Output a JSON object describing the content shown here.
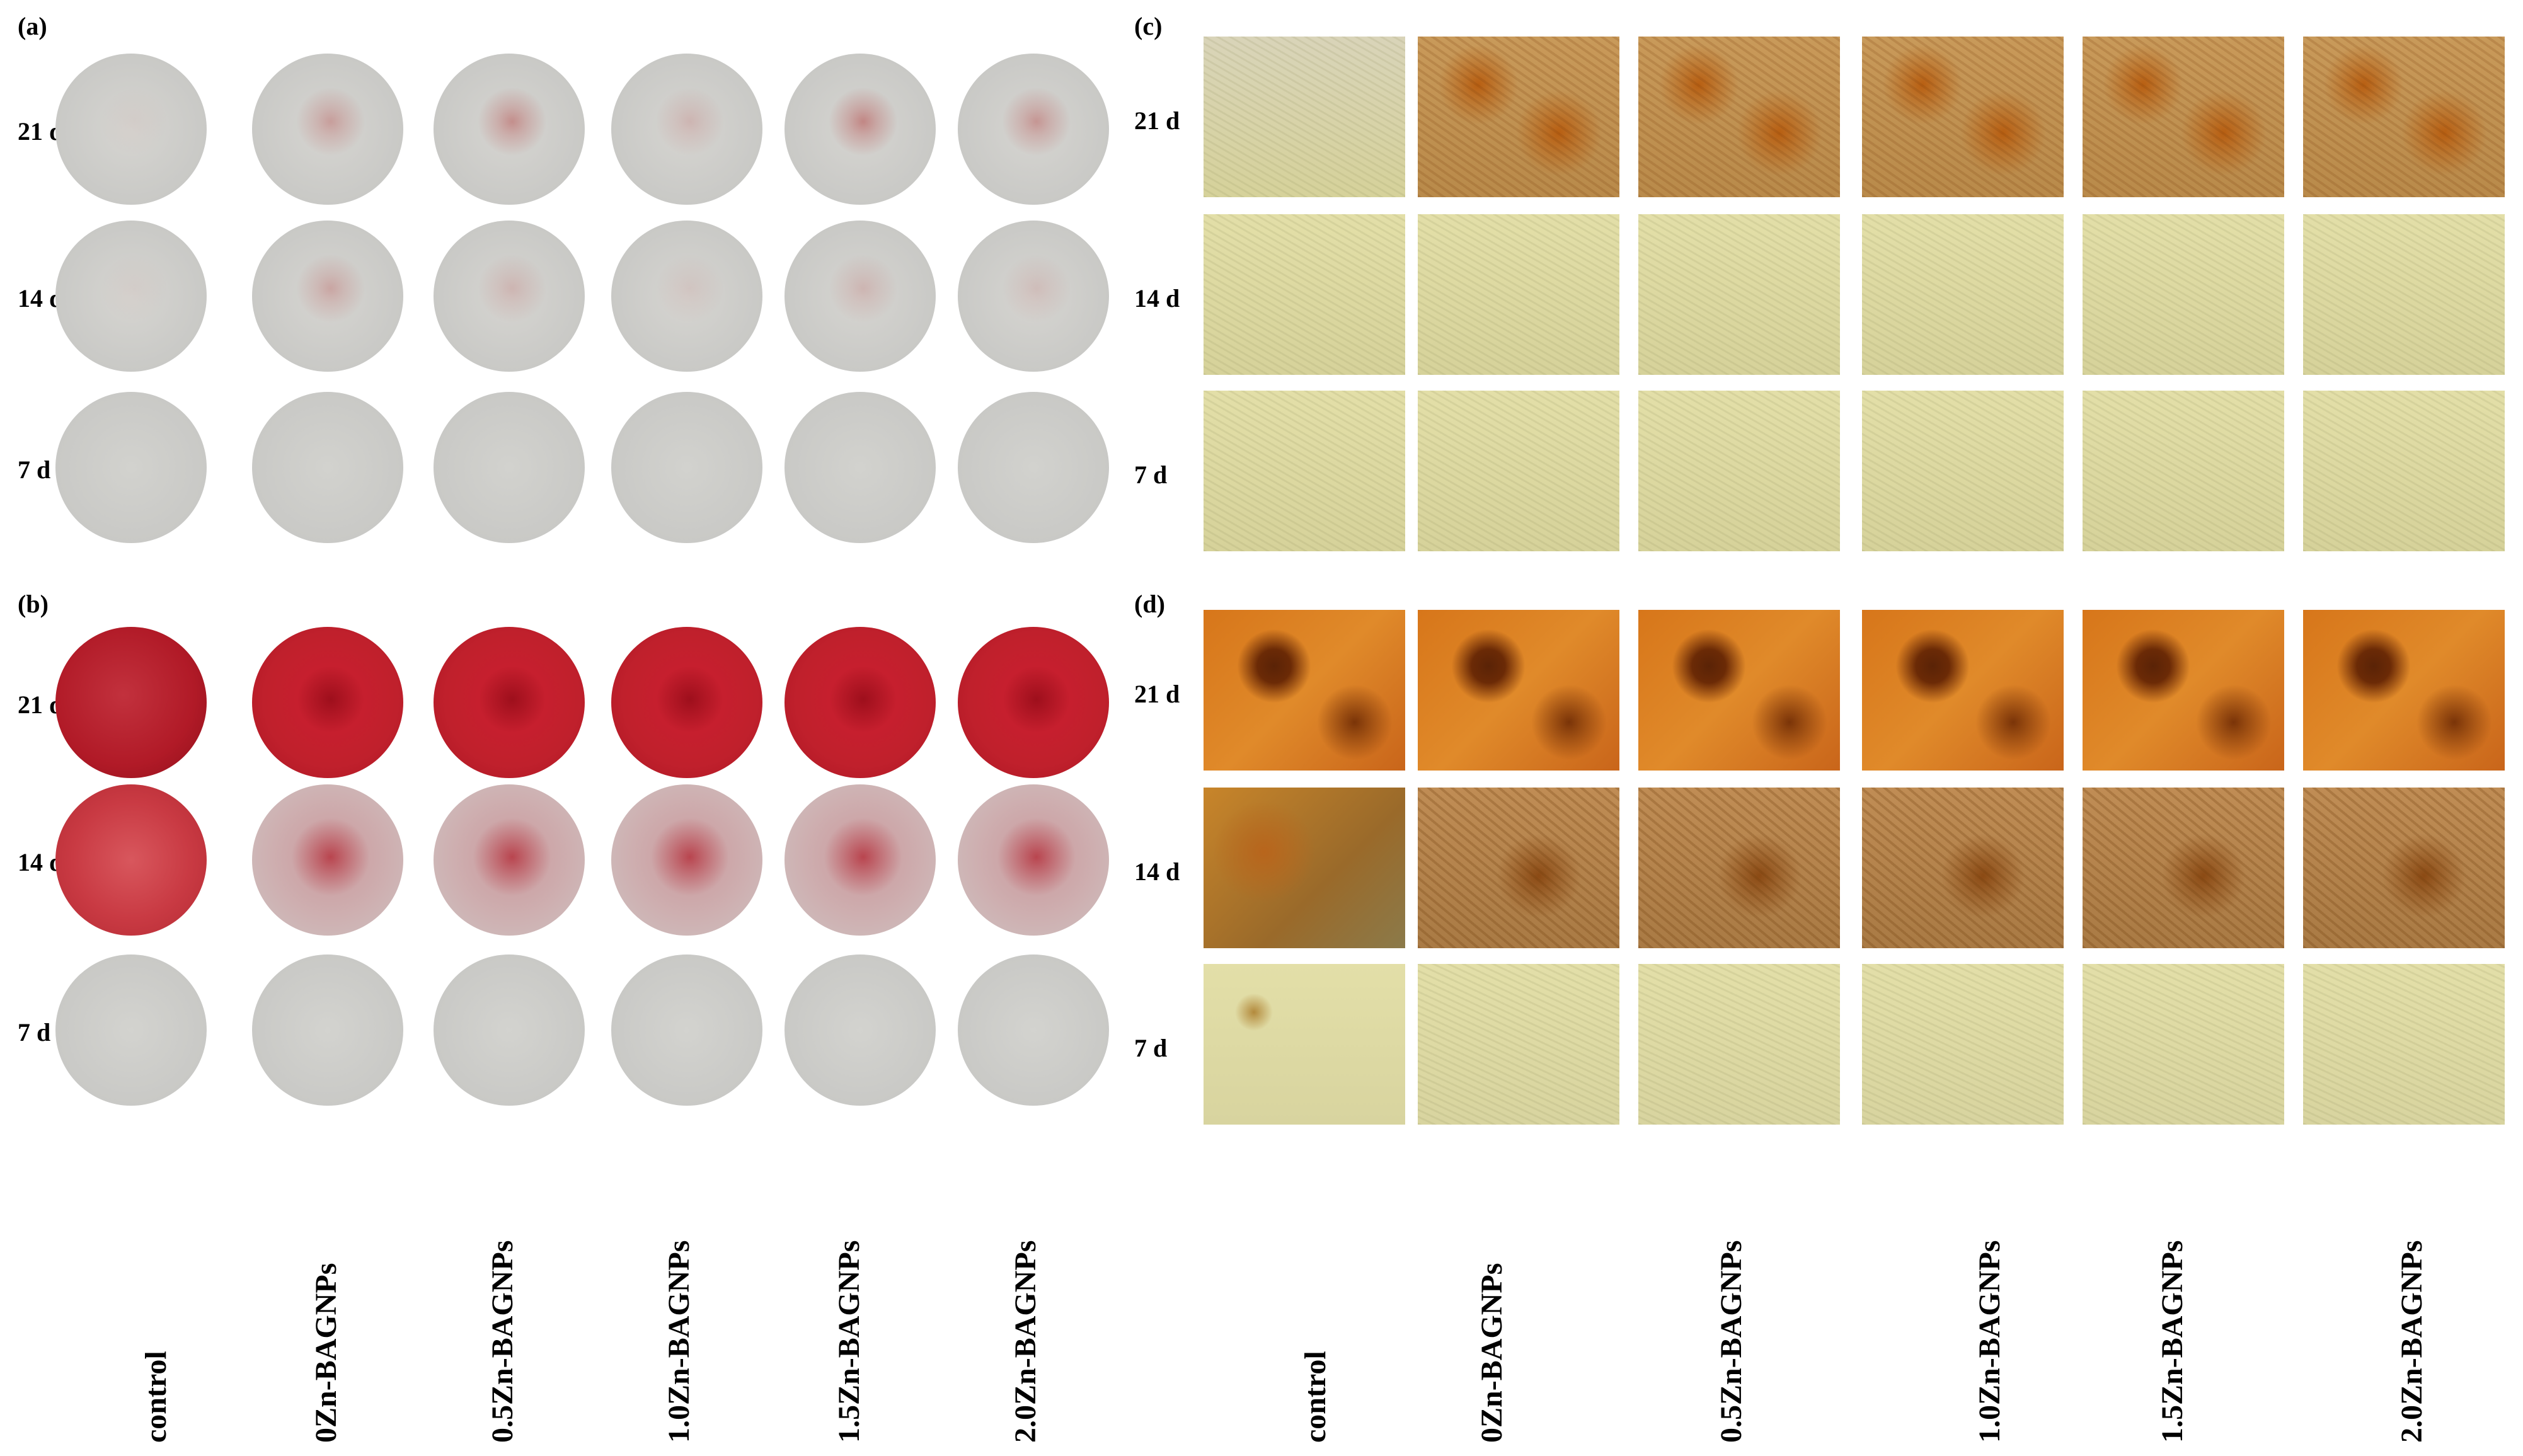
{
  "panels": {
    "a": {
      "label": "(a)"
    },
    "b": {
      "label": "(b)"
    },
    "c": {
      "label": "(c)"
    },
    "d": {
      "label": "(d)"
    }
  },
  "rows": [
    "21 d",
    "14 d",
    "7 d"
  ],
  "groups": [
    "control",
    "0Zn-BAGNPs",
    "0.5Zn-BAGNPs",
    "1.0Zn-BAGNPs",
    "1.5Zn-BAGNPs",
    "2.0Zn-BAGNPs"
  ],
  "colors": {
    "dish_plain": "#c9c9c6",
    "dish_red": "#c0202c",
    "micro_plain": "#e3dfa8",
    "micro_brown": "#b85f12",
    "micro_orange": "#d7761a"
  }
}
